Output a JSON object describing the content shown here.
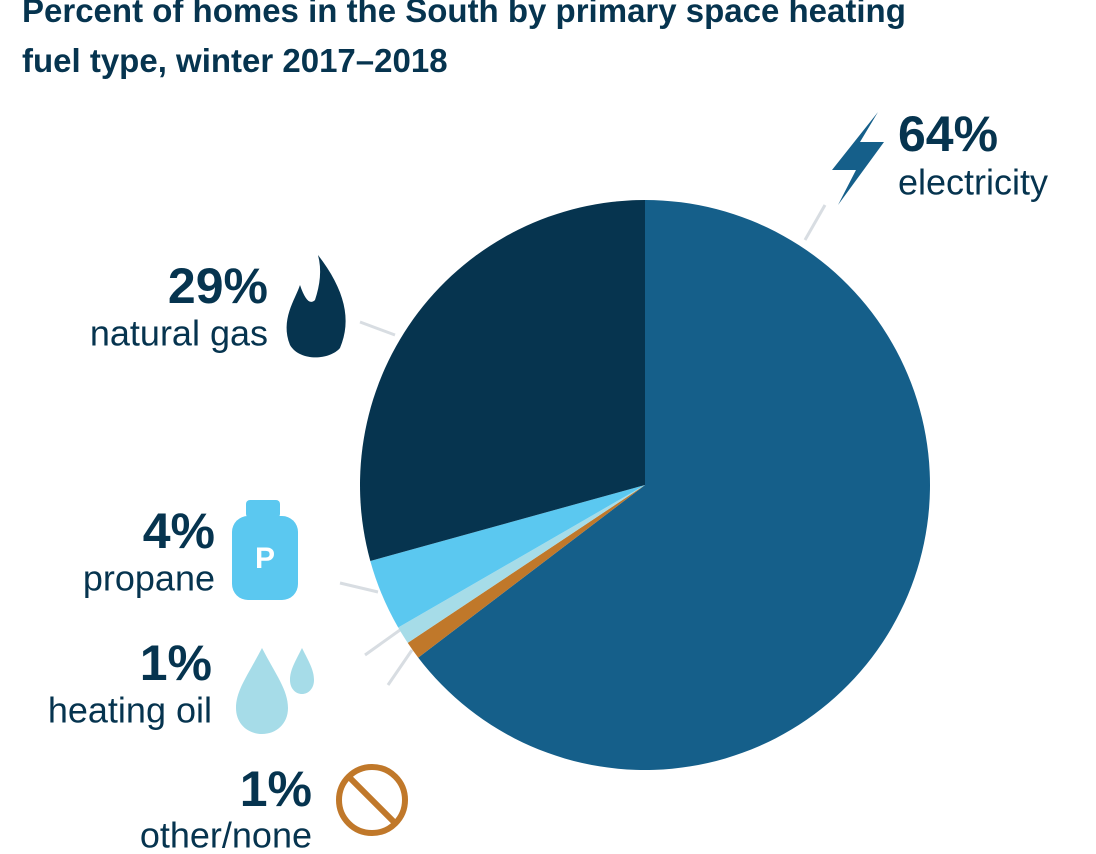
{
  "chart_data": {
    "type": "pie",
    "title": "Percent of homes in the South by primary space heating fuel type, winter 2017–2018",
    "categories": [
      "electricity",
      "other/none",
      "heating oil",
      "propane",
      "natural gas"
    ],
    "values": [
      64,
      1,
      1,
      4,
      29
    ],
    "value_labels": [
      "64%",
      "1%",
      "1%",
      "4%",
      "29%"
    ],
    "colors": [
      "#155f8a",
      "#c0782a",
      "#a6dce8",
      "#5bc8f0",
      "#06344f"
    ]
  }
}
